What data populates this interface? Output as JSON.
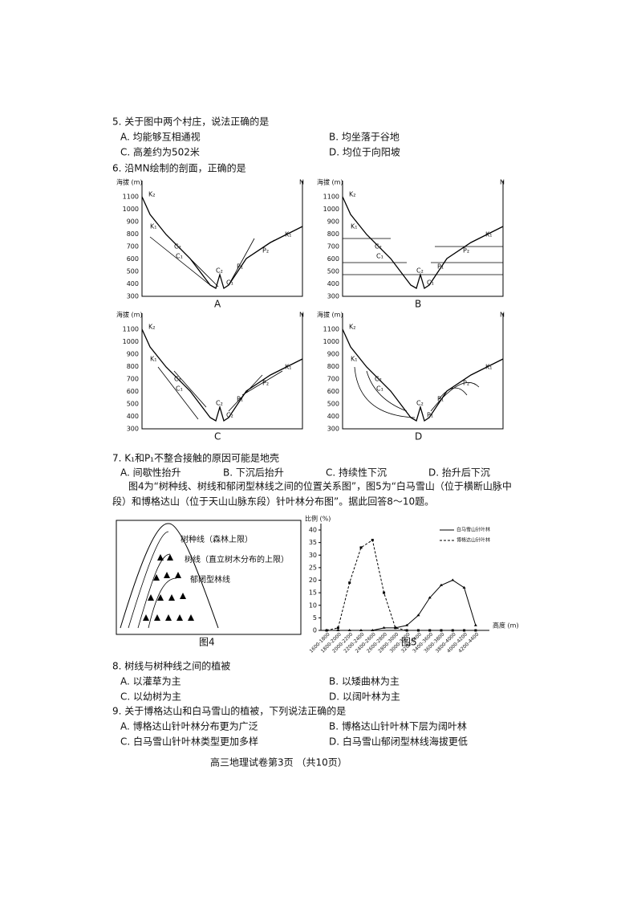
{
  "q5": {
    "stem": "5. 关于图中两个村庄，说法正确的是",
    "options": [
      "A. 均能够互相通视",
      "B. 均坐落于谷地",
      "C. 高差约为502米",
      "D. 均位于向阳坡"
    ]
  },
  "q6": {
    "stem": "6. 沿MN绘制的剖面，正确的是"
  },
  "profiles": {
    "axis_label": "海拔 (m)",
    "end_label": "N",
    "yticks": [
      "1100",
      "1000",
      "900",
      "800",
      "700",
      "600",
      "500",
      "400",
      "300"
    ],
    "panels": [
      {
        "letter": "A",
        "labels": [
          "K₂",
          "K₁",
          "C₂",
          "C₁",
          "C₂",
          "C₁",
          "P₁",
          "P₂",
          "K₁"
        ]
      },
      {
        "letter": "B",
        "labels": [
          "K₂",
          "K₁",
          "C₂",
          "C₁",
          "C₂",
          "C₁",
          "P₁",
          "P₂",
          "K₁"
        ]
      },
      {
        "letter": "C",
        "labels": [
          "K₂",
          "K₁",
          "C₂",
          "C₁",
          "C₂",
          "C₂",
          "P₁",
          "P₂",
          "K₁"
        ]
      },
      {
        "letter": "D",
        "labels": [
          "K₂",
          "K₁",
          "C₂",
          "C₁",
          "C₂",
          "P₁",
          "P₁",
          "P₂",
          "K₁"
        ]
      }
    ]
  },
  "q7": {
    "stem": "7. K₁和P₁不整合接触的原因可能是地壳",
    "options": [
      "A. 间歇性抬升",
      "B. 下沉后抬升",
      "C. 持续性下沉",
      "D. 抬升后下沉"
    ]
  },
  "intro": [
    "图4为“树种线、树线和郁闭型林线之间的位置关系图”，图5为“白马雪山（位于横断山脉中",
    "段）和博格达山（位于天山山脉东段）针叶林分布图”。据此回答8～10题。"
  ],
  "fig4": {
    "labels": [
      "树种线（森林上限）",
      "树线（直立树木分布的上限）",
      "郁闭型林线"
    ],
    "caption": "图4"
  },
  "fig5": {
    "type": "line",
    "caption": "图5",
    "y_label": "比例 (%)",
    "x_label": "高度 (m)",
    "categories": [
      "1600-1800",
      "1800-2000",
      "2000-2200",
      "2200-2400",
      "2400-2600",
      "2600-2800",
      "2800-3000",
      "3000-3200",
      "3200-3400",
      "3400-3600",
      "3600-3800",
      "3800-4000",
      "4000-4200",
      "4200-4400"
    ],
    "series": [
      {
        "name": "白马雪山针叶林",
        "color": "#000000",
        "dash": false,
        "values": [
          0,
          0,
          0,
          0,
          0,
          1,
          1,
          2,
          6,
          13,
          18,
          20,
          17,
          2
        ]
      },
      {
        "name": "博格达山针叶林",
        "color": "#000000",
        "dash": true,
        "values": [
          0,
          1,
          19,
          33,
          36,
          15,
          1,
          0,
          0,
          0,
          0,
          0,
          0,
          0
        ]
      }
    ],
    "ylim": [
      0,
      40
    ],
    "yticks": [
      0,
      5,
      10,
      15,
      20,
      25,
      30,
      35,
      40
    ]
  },
  "q8": {
    "stem": "8. 树线与树种线之间的植被",
    "options": [
      "A. 以灌草为主",
      "B. 以矮曲林为主",
      "C. 以幼树为主",
      "D. 以阔叶林为主"
    ]
  },
  "q9": {
    "stem": "9. 关于博格达山和白马雪山的植被，下列说法正确的是",
    "options": [
      "A. 博格达山针叶林分布更为广泛",
      "B. 博格达山针叶林下层为阔叶林",
      "C. 白马雪山针叶林类型更加多样",
      "D. 白马雪山郁闭型林线海拔更低"
    ]
  },
  "footer": "高三地理试卷第3页 （共10页）"
}
